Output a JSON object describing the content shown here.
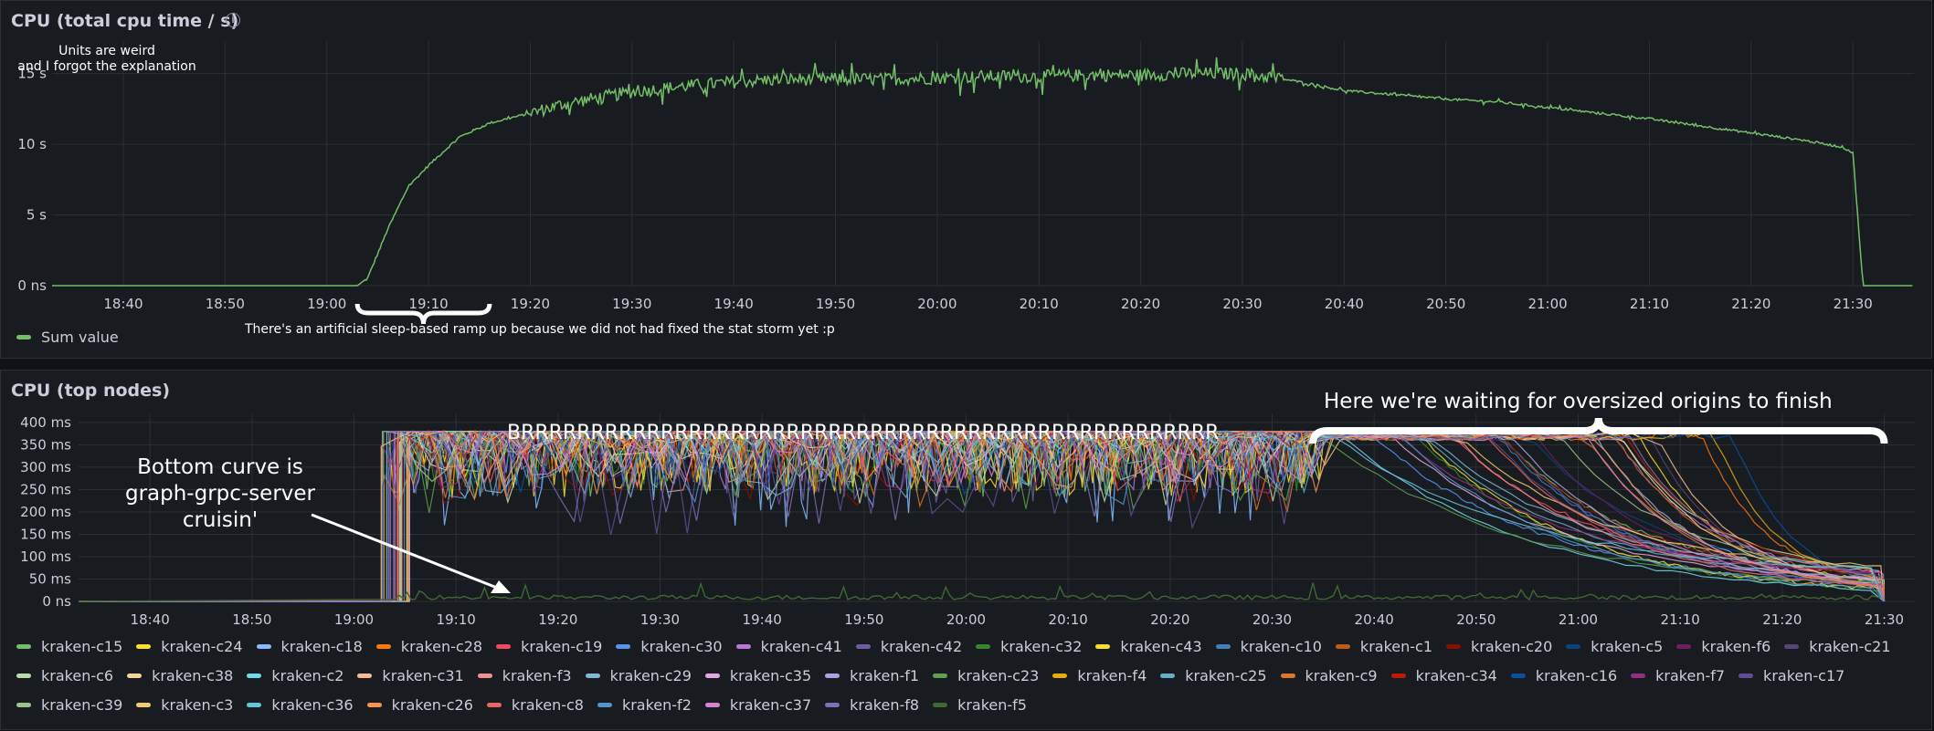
{
  "panel1": {
    "title": "CPU (total cpu time / s)",
    "info_icon": "info-icon",
    "note": "Units are weird\nand I forgot the explanation",
    "ramp_note": "There's an artificial sleep-based ramp up because we did not had fixed the stat storm yet :p",
    "legend": [
      {
        "name": "Sum value",
        "color": "#73bf69"
      }
    ]
  },
  "panel2": {
    "title": "CPU (top nodes)",
    "brrr": "BRRRRRRRRRRRRRRRRRRRRRRRRRRRRRRRRRRRRRRRRRRRRRRRRRR",
    "waiting": "Here we're waiting for oversized origins to finish",
    "bottom_curve": "Bottom curve is\ngraph-grpc-server\ncruisin'",
    "legend_rows": [
      [
        {
          "name": "kraken-c15",
          "color": "#73bf69"
        },
        {
          "name": "kraken-c24",
          "color": "#fade2a"
        },
        {
          "name": "kraken-c18",
          "color": "#8ab8ff"
        },
        {
          "name": "kraken-c28",
          "color": "#ff780a"
        },
        {
          "name": "kraken-c19",
          "color": "#f2495c"
        },
        {
          "name": "kraken-c30",
          "color": "#5794f2"
        },
        {
          "name": "kraken-c41",
          "color": "#b877d9"
        },
        {
          "name": "kraken-c42",
          "color": "#705da0"
        },
        {
          "name": "kraken-c32",
          "color": "#37872d"
        },
        {
          "name": "kraken-c43",
          "color": "#fade2a"
        },
        {
          "name": "kraken-c10",
          "color": "#447ebc"
        },
        {
          "name": "kraken-c1",
          "color": "#c15c17"
        },
        {
          "name": "kraken-c20",
          "color": "#890f02"
        },
        {
          "name": "kraken-c5",
          "color": "#0a437c"
        },
        {
          "name": "kraken-f6",
          "color": "#6d1f62"
        },
        {
          "name": "kraken-c21",
          "color": "#584477"
        }
      ],
      [
        {
          "name": "kraken-c6",
          "color": "#b7dbab"
        },
        {
          "name": "kraken-c38",
          "color": "#f4d598"
        },
        {
          "name": "kraken-c2",
          "color": "#70dbed"
        },
        {
          "name": "kraken-c31",
          "color": "#f9ba8f"
        },
        {
          "name": "kraken-f3",
          "color": "#f29191"
        },
        {
          "name": "kraken-c29",
          "color": "#82b5d8"
        },
        {
          "name": "kraken-c35",
          "color": "#e5a8e2"
        },
        {
          "name": "kraken-f1",
          "color": "#aea2e0"
        },
        {
          "name": "kraken-c23",
          "color": "#629e51"
        },
        {
          "name": "kraken-f4",
          "color": "#e5ac0e"
        },
        {
          "name": "kraken-c25",
          "color": "#64b0c8"
        },
        {
          "name": "kraken-c9",
          "color": "#e0752d"
        },
        {
          "name": "kraken-c34",
          "color": "#bf1b00"
        },
        {
          "name": "kraken-c16",
          "color": "#0a50a1"
        },
        {
          "name": "kraken-f7",
          "color": "#962d82"
        },
        {
          "name": "kraken-c17",
          "color": "#614d93"
        }
      ],
      [
        {
          "name": "kraken-c39",
          "color": "#9ac48a"
        },
        {
          "name": "kraken-c3",
          "color": "#f2c96d"
        },
        {
          "name": "kraken-c36",
          "color": "#65c5db"
        },
        {
          "name": "kraken-c26",
          "color": "#f9934e"
        },
        {
          "name": "kraken-c8",
          "color": "#ea6460"
        },
        {
          "name": "kraken-f2",
          "color": "#5195ce"
        },
        {
          "name": "kraken-c37",
          "color": "#d683ce"
        },
        {
          "name": "kraken-f8",
          "color": "#806eb7"
        },
        {
          "name": "kraken-f5",
          "color": "#3f6833"
        }
      ]
    ]
  },
  "chart_data": [
    {
      "type": "line",
      "title": "CPU (total cpu time / s)",
      "y_ticks": [
        "0 ns",
        "5 s",
        "10 s",
        "15 s"
      ],
      "ylim": [
        0,
        17
      ],
      "x_ticks": [
        "18:40",
        "18:50",
        "19:00",
        "19:10",
        "19:20",
        "19:30",
        "19:40",
        "19:50",
        "20:00",
        "20:10",
        "20:20",
        "20:30",
        "20:40",
        "20:50",
        "21:00",
        "21:10",
        "21:20",
        "21:30"
      ],
      "grid": true,
      "legend_position": "bottom-left",
      "series": [
        {
          "name": "Sum value",
          "color": "#73bf69",
          "points": [
            [
              "18:33",
              0
            ],
            [
              "19:03",
              0
            ],
            [
              "19:04",
              0.5
            ],
            [
              "19:06",
              4
            ],
            [
              "19:08",
              7
            ],
            [
              "19:10",
              8.5
            ],
            [
              "19:13",
              10.5
            ],
            [
              "19:16",
              11.5
            ],
            [
              "19:20",
              12.2
            ],
            [
              "19:23",
              12.8
            ],
            [
              "19:26",
              13.2
            ],
            [
              "19:30",
              13.7
            ],
            [
              "19:35",
              14.1
            ],
            [
              "19:40",
              14.4
            ],
            [
              "19:45",
              14.6
            ],
            [
              "19:50",
              14.6
            ],
            [
              "19:55",
              14.6
            ],
            [
              "20:00",
              14.7
            ],
            [
              "20:05",
              14.8
            ],
            [
              "20:10",
              14.8
            ],
            [
              "20:15",
              14.9
            ],
            [
              "20:20",
              14.9
            ],
            [
              "20:25",
              15.0
            ],
            [
              "20:30",
              15.0
            ],
            [
              "20:35",
              14.5
            ],
            [
              "20:40",
              13.8
            ],
            [
              "20:45",
              13.5
            ],
            [
              "20:50",
              13.2
            ],
            [
              "20:55",
              13.0
            ],
            [
              "21:00",
              12.6
            ],
            [
              "21:05",
              12.2
            ],
            [
              "21:10",
              11.8
            ],
            [
              "21:15",
              11.3
            ],
            [
              "21:20",
              10.8
            ],
            [
              "21:25",
              10.3
            ],
            [
              "21:29",
              9.8
            ],
            [
              "21:30",
              9.4
            ],
            [
              "21:31",
              0
            ],
            [
              "21:36",
              0
            ]
          ]
        }
      ]
    },
    {
      "type": "line",
      "title": "CPU (top nodes)",
      "y_ticks": [
        "0 ns",
        "50 ms",
        "100 ms",
        "150 ms",
        "200 ms",
        "250 ms",
        "300 ms",
        "350 ms",
        "400 ms"
      ],
      "ylim": [
        0,
        410
      ],
      "x_ticks": [
        "18:40",
        "18:50",
        "19:00",
        "19:10",
        "19:20",
        "19:30",
        "19:40",
        "19:50",
        "20:00",
        "20:10",
        "20:20",
        "20:30",
        "20:40",
        "20:50",
        "21:00",
        "21:10",
        "21:20",
        "21:30"
      ],
      "grid": true,
      "legend_position": "bottom",
      "series_count": 41,
      "saturation_level_ms": 380,
      "saturation_window": [
        "19:04",
        "20:34"
      ],
      "decay_window": [
        "20:34",
        "21:30"
      ],
      "bottom_series": "kraken-f5"
    }
  ]
}
